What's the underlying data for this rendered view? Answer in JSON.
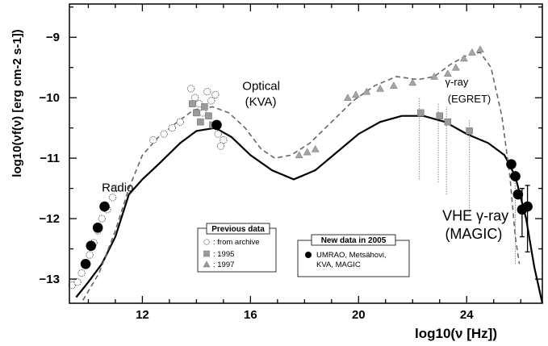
{
  "chart_data": {
    "type": "scatter",
    "xlabel": "log10(ν [Hz])",
    "ylabel": "log10(νf(ν) [erg cm-2 s-1])",
    "xlim": [
      9.3,
      26.8
    ],
    "ylim": [
      -13.4,
      -8.45
    ],
    "x_ticks": [
      12,
      16,
      20,
      24
    ],
    "y_ticks": [
      -13,
      -12,
      -11,
      -10,
      -9
    ],
    "grid": false,
    "annotations": [
      {
        "text": "Radio",
        "x": 10.5,
        "y": -11.55
      },
      {
        "text": "Optical",
        "x": 15.7,
        "y": -9.87
      },
      {
        "text": "(KVA)",
        "x": 15.8,
        "y": -10.13
      },
      {
        "text": "γ-ray",
        "x": 23.2,
        "y": -9.8
      },
      {
        "text": "(EGRET)",
        "x": 23.3,
        "y": -10.08
      },
      {
        "text": "VHE γ-ray",
        "x": 23.1,
        "y": -12.03
      },
      {
        "text": "(MAGIC)",
        "x": 23.2,
        "y": -12.33
      }
    ],
    "legend_previous": {
      "title": "Previous data",
      "entries": [
        {
          "marker": "open-circle",
          "label": ": from archive"
        },
        {
          "marker": "gray-square",
          "label": ": 1995"
        },
        {
          "marker": "gray-triangle",
          "label": ": 1997"
        }
      ]
    },
    "legend_new": {
      "title": "New data in 2005",
      "entries": [
        {
          "marker": "filled-circle",
          "label": "UMRAO, Metsähovi,"
        },
        {
          "marker": "none",
          "label": "KVA, MAGIC"
        }
      ]
    },
    "series": [
      {
        "label": ": from archive",
        "style": "open-circle",
        "points": [
          [
            9.4,
            -13.1
          ],
          [
            9.6,
            -13.05
          ],
          [
            9.75,
            -12.9
          ],
          [
            9.9,
            -12.75
          ],
          [
            10.05,
            -12.6
          ],
          [
            10.2,
            -12.4
          ],
          [
            10.35,
            -12.2
          ],
          [
            10.5,
            -12.0
          ],
          [
            10.7,
            -11.85
          ],
          [
            10.9,
            -11.65
          ],
          [
            11.0,
            -11.5
          ],
          [
            12.4,
            -10.7
          ],
          [
            12.8,
            -10.6
          ],
          [
            13.1,
            -10.5
          ],
          [
            13.4,
            -10.4
          ],
          [
            13.8,
            -9.85
          ],
          [
            13.95,
            -10.0
          ],
          [
            14.1,
            -10.1
          ],
          [
            14.25,
            -10.25
          ],
          [
            14.4,
            -9.9
          ],
          [
            14.55,
            -10.05
          ],
          [
            14.7,
            -9.95
          ],
          [
            14.8,
            -10.6
          ],
          [
            14.9,
            -10.8
          ],
          [
            15.0,
            -10.7
          ]
        ]
      },
      {
        "label": ": 1995",
        "style": "gray-square",
        "points": [
          [
            13.85,
            -10.1
          ],
          [
            14.0,
            -10.25
          ],
          [
            14.15,
            -10.4
          ],
          [
            14.3,
            -10.15
          ],
          [
            14.45,
            -10.3
          ],
          [
            14.6,
            -10.45
          ],
          [
            22.3,
            -10.25
          ],
          [
            23.0,
            -10.3
          ],
          [
            23.3,
            -10.4
          ],
          [
            24.1,
            -10.55
          ]
        ]
      },
      {
        "label": ": 1997",
        "style": "gray-triangle",
        "points": [
          [
            17.8,
            -10.95
          ],
          [
            18.1,
            -10.9
          ],
          [
            18.4,
            -10.85
          ],
          [
            19.6,
            -10.0
          ],
          [
            19.9,
            -9.95
          ],
          [
            20.3,
            -9.9
          ],
          [
            20.8,
            -9.85
          ],
          [
            21.3,
            -9.8
          ],
          [
            22.0,
            -9.75
          ],
          [
            22.8,
            -9.65
          ],
          [
            23.3,
            -9.6
          ],
          [
            23.6,
            -9.5
          ],
          [
            23.9,
            -9.35
          ],
          [
            24.2,
            -9.25
          ],
          [
            24.5,
            -9.2
          ]
        ]
      },
      {
        "label": "UMRAO, Metsähovi, KVA, MAGIC",
        "style": "filled-circle",
        "points": [
          [
            9.9,
            -12.75
          ],
          [
            10.1,
            -12.45
          ],
          [
            10.35,
            -12.15
          ],
          [
            10.6,
            -11.8
          ],
          [
            14.75,
            -10.45
          ],
          [
            25.65,
            -11.1
          ],
          [
            25.8,
            -11.3
          ],
          [
            25.9,
            -11.6
          ],
          [
            26.05,
            -11.85
          ],
          [
            26.25,
            -11.8
          ]
        ],
        "errors": [
          [
            26.05,
            -12.3,
            -11.5
          ],
          [
            26.25,
            -12.55,
            -11.45
          ]
        ]
      }
    ],
    "models": [
      {
        "style": "solid",
        "points": [
          [
            9.55,
            -13.3
          ],
          [
            10.0,
            -13.05
          ],
          [
            10.5,
            -12.75
          ],
          [
            11.0,
            -12.3
          ],
          [
            11.5,
            -11.6
          ],
          [
            12.0,
            -11.35
          ],
          [
            12.6,
            -11.1
          ],
          [
            13.4,
            -10.75
          ],
          [
            14.0,
            -10.55
          ],
          [
            14.7,
            -10.5
          ],
          [
            15.3,
            -10.65
          ],
          [
            16.0,
            -10.95
          ],
          [
            16.8,
            -11.2
          ],
          [
            17.6,
            -11.35
          ],
          [
            18.4,
            -11.2
          ],
          [
            19.2,
            -10.9
          ],
          [
            20.0,
            -10.6
          ],
          [
            20.8,
            -10.4
          ],
          [
            21.6,
            -10.3
          ],
          [
            22.4,
            -10.3
          ],
          [
            23.2,
            -10.4
          ],
          [
            24.0,
            -10.6
          ],
          [
            24.8,
            -10.75
          ],
          [
            25.4,
            -10.95
          ],
          [
            25.8,
            -11.3
          ],
          [
            26.2,
            -12.0
          ],
          [
            26.5,
            -12.8
          ],
          [
            26.8,
            -13.4
          ]
        ]
      },
      {
        "style": "dashed",
        "points": [
          [
            9.8,
            -13.35
          ],
          [
            10.4,
            -12.9
          ],
          [
            11.0,
            -12.2
          ],
          [
            11.5,
            -11.5
          ],
          [
            12.0,
            -10.95
          ],
          [
            12.6,
            -10.65
          ],
          [
            13.3,
            -10.4
          ],
          [
            13.9,
            -10.2
          ],
          [
            14.6,
            -10.15
          ],
          [
            15.2,
            -10.25
          ],
          [
            15.8,
            -10.5
          ],
          [
            16.4,
            -10.85
          ],
          [
            16.9,
            -11.0
          ],
          [
            17.5,
            -10.95
          ],
          [
            18.2,
            -10.75
          ],
          [
            19.0,
            -10.4
          ],
          [
            19.8,
            -10.05
          ],
          [
            20.6,
            -9.8
          ],
          [
            21.4,
            -9.65
          ],
          [
            22.2,
            -9.7
          ],
          [
            22.8,
            -9.65
          ],
          [
            23.4,
            -9.45
          ],
          [
            24.0,
            -9.3
          ],
          [
            24.5,
            -9.25
          ],
          [
            24.9,
            -9.5
          ],
          [
            25.3,
            -10.3
          ],
          [
            25.6,
            -11.3
          ],
          [
            25.8,
            -12.3
          ],
          [
            25.95,
            -12.75
          ]
        ]
      }
    ],
    "vertical_lines": [
      {
        "x": 22.25,
        "y1": -11.35,
        "y2": -10.0
      },
      {
        "x": 22.95,
        "y1": -11.4,
        "y2": -10.1
      },
      {
        "x": 23.25,
        "y1": -11.6,
        "y2": -10.15
      },
      {
        "x": 24.1,
        "y1": -11.95,
        "y2": -10.35
      },
      {
        "x": 25.8,
        "y1": -12.75,
        "y2": -11.2
      }
    ]
  }
}
